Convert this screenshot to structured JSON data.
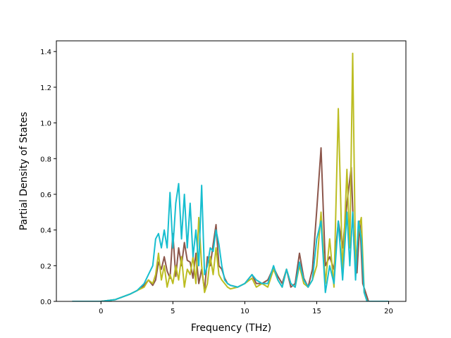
{
  "chart_data": {
    "type": "line",
    "title": "",
    "xlabel": "Frequency (THz)",
    "ylabel": "Partial Density of States",
    "xlim": [
      -3.1,
      21.2
    ],
    "ylim": [
      0.0,
      1.46
    ],
    "xticks": [
      0,
      5,
      10,
      15,
      20
    ],
    "yticks": [
      0.0,
      0.2,
      0.4,
      0.6,
      0.8,
      1.0,
      1.2,
      1.4
    ],
    "xtick_labels": [
      "0",
      "5",
      "10",
      "15",
      "20"
    ],
    "ytick_labels": [
      "0.0",
      "0.2",
      "0.4",
      "0.6",
      "0.8",
      "1.0",
      "1.2",
      "1.4"
    ],
    "grid": false,
    "legend": null,
    "series": [
      {
        "color": "#8c564b",
        "x": [
          -2.0,
          0.0,
          1.0,
          2.0,
          2.5,
          3.0,
          3.3,
          3.6,
          3.8,
          4.0,
          4.2,
          4.4,
          4.6,
          4.8,
          5.0,
          5.2,
          5.4,
          5.6,
          5.8,
          6.0,
          6.2,
          6.4,
          6.6,
          6.8,
          7.0,
          7.2,
          7.4,
          7.6,
          7.8,
          8.0,
          8.2,
          8.4,
          8.6,
          8.8,
          9.0,
          9.5,
          10.0,
          10.5,
          10.8,
          11.2,
          11.6,
          12.0,
          12.3,
          12.6,
          12.9,
          13.2,
          13.5,
          13.8,
          14.1,
          14.4,
          14.7,
          15.0,
          15.3,
          15.6,
          15.9,
          16.2,
          16.5,
          16.8,
          17.1,
          17.4,
          17.6,
          17.8,
          18.0,
          18.2,
          18.4,
          18.6,
          20.0
        ],
        "y": [
          0.0,
          0.0,
          0.01,
          0.04,
          0.06,
          0.09,
          0.12,
          0.09,
          0.12,
          0.22,
          0.18,
          0.25,
          0.17,
          0.13,
          0.38,
          0.14,
          0.3,
          0.2,
          0.33,
          0.23,
          0.22,
          0.13,
          0.27,
          0.1,
          0.18,
          0.06,
          0.25,
          0.2,
          0.32,
          0.43,
          0.2,
          0.18,
          0.13,
          0.1,
          0.09,
          0.08,
          0.1,
          0.15,
          0.1,
          0.1,
          0.12,
          0.19,
          0.14,
          0.1,
          0.18,
          0.08,
          0.1,
          0.27,
          0.13,
          0.08,
          0.18,
          0.51,
          0.86,
          0.2,
          0.25,
          0.18,
          0.45,
          0.3,
          0.55,
          0.75,
          0.3,
          0.16,
          0.45,
          0.1,
          0.05,
          0.0,
          0.0
        ]
      },
      {
        "color": "#bcbd22",
        "x": [
          -2.0,
          0.0,
          1.0,
          2.0,
          2.5,
          3.0,
          3.3,
          3.6,
          3.8,
          4.0,
          4.2,
          4.4,
          4.6,
          4.8,
          5.0,
          5.2,
          5.4,
          5.6,
          5.8,
          6.0,
          6.2,
          6.4,
          6.6,
          6.8,
          7.0,
          7.2,
          7.4,
          7.6,
          7.8,
          8.0,
          8.2,
          8.4,
          8.6,
          8.8,
          9.0,
          9.5,
          10.0,
          10.5,
          10.8,
          11.2,
          11.6,
          12.0,
          12.3,
          12.6,
          12.9,
          13.2,
          13.5,
          13.8,
          14.1,
          14.4,
          14.7,
          15.0,
          15.3,
          15.6,
          15.9,
          16.2,
          16.5,
          16.8,
          17.1,
          17.3,
          17.5,
          17.7,
          17.9,
          18.1,
          18.3,
          18.5,
          20.0
        ],
        "y": [
          0.0,
          0.0,
          0.01,
          0.04,
          0.06,
          0.08,
          0.12,
          0.1,
          0.15,
          0.27,
          0.12,
          0.2,
          0.08,
          0.15,
          0.1,
          0.2,
          0.12,
          0.25,
          0.08,
          0.18,
          0.15,
          0.25,
          0.1,
          0.47,
          0.2,
          0.05,
          0.1,
          0.25,
          0.15,
          0.3,
          0.15,
          0.12,
          0.1,
          0.08,
          0.07,
          0.08,
          0.1,
          0.13,
          0.08,
          0.1,
          0.08,
          0.18,
          0.12,
          0.08,
          0.18,
          0.1,
          0.08,
          0.2,
          0.1,
          0.08,
          0.12,
          0.2,
          0.5,
          0.1,
          0.35,
          0.08,
          1.08,
          0.15,
          0.74,
          0.3,
          1.39,
          0.2,
          0.4,
          0.47,
          0.05,
          0.0,
          0.0
        ]
      },
      {
        "color": "#17becf",
        "x": [
          -2.0,
          0.0,
          1.0,
          2.0,
          2.5,
          3.0,
          3.3,
          3.6,
          3.8,
          4.0,
          4.2,
          4.4,
          4.6,
          4.8,
          5.0,
          5.2,
          5.4,
          5.6,
          5.8,
          6.0,
          6.2,
          6.4,
          6.6,
          6.8,
          7.0,
          7.2,
          7.4,
          7.6,
          7.8,
          8.0,
          8.2,
          8.4,
          8.6,
          8.8,
          9.0,
          9.5,
          10.0,
          10.5,
          10.8,
          11.2,
          11.6,
          12.0,
          12.3,
          12.6,
          12.9,
          13.2,
          13.5,
          13.8,
          14.1,
          14.4,
          14.7,
          15.0,
          15.3,
          15.6,
          15.9,
          16.2,
          16.5,
          16.8,
          17.1,
          17.3,
          17.5,
          17.7,
          17.9,
          18.1,
          18.3,
          18.5,
          20.0
        ],
        "y": [
          0.0,
          0.0,
          0.01,
          0.04,
          0.06,
          0.1,
          0.15,
          0.2,
          0.35,
          0.38,
          0.3,
          0.4,
          0.3,
          0.61,
          0.3,
          0.55,
          0.66,
          0.35,
          0.6,
          0.3,
          0.55,
          0.25,
          0.4,
          0.2,
          0.65,
          0.15,
          0.2,
          0.3,
          0.28,
          0.4,
          0.32,
          0.2,
          0.12,
          0.1,
          0.09,
          0.08,
          0.1,
          0.15,
          0.12,
          0.1,
          0.1,
          0.2,
          0.12,
          0.08,
          0.18,
          0.1,
          0.08,
          0.22,
          0.12,
          0.08,
          0.12,
          0.35,
          0.45,
          0.05,
          0.2,
          0.1,
          0.45,
          0.12,
          0.5,
          0.2,
          0.5,
          0.12,
          0.45,
          0.35,
          0.05,
          0.0,
          0.0
        ]
      }
    ]
  }
}
